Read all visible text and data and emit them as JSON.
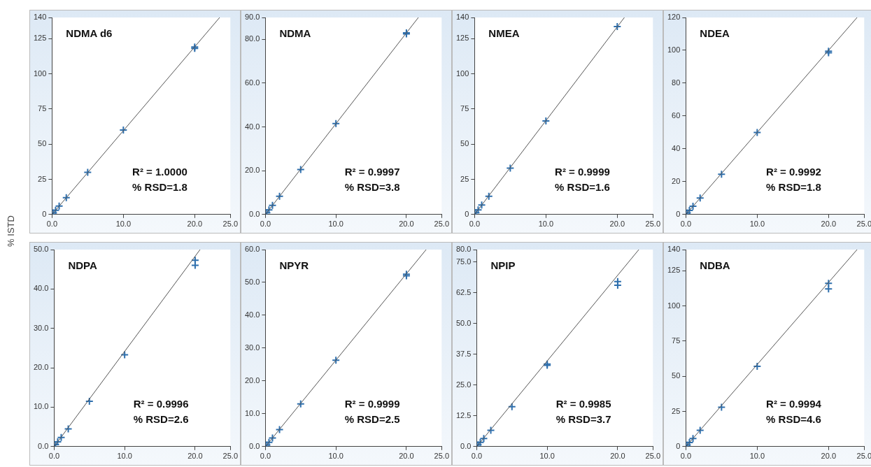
{
  "chart_data": [
    {
      "type": "scatter",
      "title": "NDMA d6",
      "ylabel": "% ISTD",
      "legend": false,
      "xlim": [
        0,
        25
      ],
      "xticks": [
        {
          "value": 0,
          "label": "0.0"
        },
        {
          "value": 10,
          "label": "10.0"
        },
        {
          "value": 20,
          "label": "20.0"
        },
        {
          "value": 25,
          "label": "25.0"
        }
      ],
      "ylim": [
        0,
        140
      ],
      "yticks": [
        0,
        25,
        50,
        75,
        100,
        125,
        140
      ],
      "annotations": [
        "R² = 1.0000",
        "% RSD=1.8"
      ],
      "series": [
        {
          "color": "#2e6fad",
          "marker": "cross",
          "x": [
            0.2,
            0.5,
            1,
            2,
            5,
            10,
            20,
            20
          ],
          "values": [
            1.2,
            3,
            6,
            12,
            30,
            60,
            119,
            118
          ]
        },
        {
          "type": "line",
          "marker": "none",
          "color": "#555555",
          "x": [
            0,
            23.5
          ],
          "values": [
            0,
            140
          ]
        }
      ]
    },
    {
      "type": "scatter",
      "title": "NDMA",
      "legend": false,
      "xlim": [
        0,
        25
      ],
      "xticks": [
        {
          "value": 0,
          "label": "0.0"
        },
        {
          "value": 10,
          "label": "10.0"
        },
        {
          "value": 20,
          "label": "20.0"
        },
        {
          "value": 25,
          "label": "25.0"
        }
      ],
      "ylim": [
        0,
        90
      ],
      "yticks": [
        {
          "value": 0,
          "label": "0.0"
        },
        {
          "value": 20,
          "label": "20.0"
        },
        {
          "value": 40,
          "label": "40.0"
        },
        {
          "value": 60,
          "label": "60.0"
        },
        {
          "value": 80,
          "label": "80.0"
        },
        {
          "value": 90,
          "label": "90.0"
        }
      ],
      "annotations": [
        "R² = 0.9997",
        "% RSD=3.8"
      ],
      "series": [
        {
          "color": "#2e6fad",
          "marker": "cross",
          "x": [
            0.2,
            0.5,
            1,
            2,
            5,
            10,
            20,
            20
          ],
          "values": [
            0.8,
            2.1,
            4.2,
            8.3,
            20.5,
            41.5,
            83,
            82.5
          ]
        },
        {
          "type": "line",
          "marker": "none",
          "color": "#555555",
          "x": [
            0,
            21.7
          ],
          "values": [
            0,
            90
          ]
        }
      ]
    },
    {
      "type": "scatter",
      "title": "NMEA",
      "legend": false,
      "xlim": [
        0,
        25
      ],
      "xticks": [
        {
          "value": 0,
          "label": "0.0"
        },
        {
          "value": 10,
          "label": "10.0"
        },
        {
          "value": 20,
          "label": "20.0"
        },
        {
          "value": 25,
          "label": "25.0"
        }
      ],
      "ylim": [
        0,
        140
      ],
      "yticks": [
        0,
        25,
        50,
        75,
        100,
        125,
        140
      ],
      "annotations": [
        "R² = 0.9999",
        "% RSD=1.6"
      ],
      "series": [
        {
          "color": "#2e6fad",
          "marker": "cross",
          "x": [
            0.2,
            0.5,
            1,
            2,
            5,
            10,
            20
          ],
          "values": [
            1.3,
            3.3,
            6.7,
            13,
            33,
            66.5,
            133.5
          ]
        },
        {
          "type": "line",
          "marker": "none",
          "color": "#555555",
          "x": [
            0,
            21
          ],
          "values": [
            0,
            140
          ]
        }
      ]
    },
    {
      "type": "scatter",
      "title": "NDEA",
      "legend": false,
      "xlim": [
        0,
        25
      ],
      "xticks": [
        {
          "value": 0,
          "label": "0.0"
        },
        {
          "value": 10,
          "label": "10.0"
        },
        {
          "value": 20,
          "label": "20.0"
        },
        {
          "value": 25,
          "label": "25.0"
        }
      ],
      "ylim": [
        0,
        120
      ],
      "yticks": [
        0,
        20,
        40,
        60,
        80,
        100,
        120
      ],
      "annotations": [
        "R² = 0.9992",
        "% RSD=1.8"
      ],
      "series": [
        {
          "color": "#2e6fad",
          "marker": "cross",
          "x": [
            0.2,
            0.5,
            1,
            2,
            5,
            10,
            20,
            20
          ],
          "values": [
            1,
            2.5,
            5,
            10,
            24.5,
            50,
            99.5,
            98.5
          ]
        },
        {
          "type": "line",
          "marker": "none",
          "color": "#555555",
          "x": [
            0,
            24
          ],
          "values": [
            0,
            120
          ]
        }
      ]
    },
    {
      "type": "scatter",
      "title": "NDPA",
      "legend": false,
      "xlim": [
        0,
        25
      ],
      "xticks": [
        {
          "value": 0,
          "label": "0.0"
        },
        {
          "value": 10,
          "label": "10.0"
        },
        {
          "value": 20,
          "label": "20.0"
        },
        {
          "value": 25,
          "label": "25.0"
        }
      ],
      "ylim": [
        0,
        50
      ],
      "yticks": [
        {
          "value": 0,
          "label": "0.0"
        },
        {
          "value": 10,
          "label": "10.0"
        },
        {
          "value": 20,
          "label": "20.0"
        },
        {
          "value": 30,
          "label": "30.0"
        },
        {
          "value": 40,
          "label": "40.0"
        },
        {
          "value": 50,
          "label": "50.0"
        }
      ],
      "annotations": [
        "R² = 0.9996",
        "% RSD=2.6"
      ],
      "series": [
        {
          "color": "#2e6fad",
          "marker": "cross",
          "x": [
            0.2,
            0.5,
            1,
            2,
            5,
            10,
            20,
            20
          ],
          "values": [
            0.5,
            1.2,
            2.3,
            4.5,
            11.5,
            23.3,
            47.3,
            46
          ]
        },
        {
          "type": "line",
          "marker": "none",
          "color": "#555555",
          "x": [
            0,
            20.7
          ],
          "values": [
            0,
            50
          ]
        }
      ]
    },
    {
      "type": "scatter",
      "title": "NPYR",
      "legend": false,
      "xlim": [
        0,
        25
      ],
      "xticks": [
        {
          "value": 0,
          "label": "0.0"
        },
        {
          "value": 10,
          "label": "10.0"
        },
        {
          "value": 20,
          "label": "20.0"
        },
        {
          "value": 25,
          "label": "25.0"
        }
      ],
      "ylim": [
        0,
        60
      ],
      "yticks": [
        {
          "value": 0,
          "label": "0.0"
        },
        {
          "value": 10,
          "label": "10.0"
        },
        {
          "value": 20,
          "label": "20.0"
        },
        {
          "value": 30,
          "label": "30.0"
        },
        {
          "value": 40,
          "label": "40.0"
        },
        {
          "value": 50,
          "label": "50.0"
        },
        {
          "value": 60,
          "label": "60.0"
        }
      ],
      "annotations": [
        "R² = 0.9999",
        "% RSD=2.5"
      ],
      "series": [
        {
          "color": "#2e6fad",
          "marker": "cross",
          "x": [
            0.2,
            0.5,
            1,
            2,
            5,
            10,
            20,
            20
          ],
          "values": [
            0.5,
            1.3,
            2.6,
            5.2,
            13,
            26.3,
            52.5,
            52
          ]
        },
        {
          "type": "line",
          "marker": "none",
          "color": "#555555",
          "x": [
            0,
            22.8
          ],
          "values": [
            0,
            60
          ]
        }
      ]
    },
    {
      "type": "scatter",
      "title": "NPIP",
      "legend": false,
      "xlim": [
        0,
        25
      ],
      "xticks": [
        {
          "value": 0,
          "label": "0.0"
        },
        {
          "value": 10,
          "label": "10.0"
        },
        {
          "value": 20,
          "label": "20.0"
        },
        {
          "value": 25,
          "label": "25.0"
        }
      ],
      "ylim": [
        0,
        80
      ],
      "yticks": [
        {
          "value": 0,
          "label": "0.0"
        },
        12.5,
        {
          "value": 25,
          "label": "25.0"
        },
        37.5,
        {
          "value": 50,
          "label": "50.0"
        },
        62.5,
        {
          "value": 75,
          "label": "75.0"
        },
        {
          "value": 80,
          "label": "80.0"
        }
      ],
      "annotations": [
        "R² = 0.9985",
        "% RSD=3.7"
      ],
      "series": [
        {
          "color": "#2e6fad",
          "marker": "cross",
          "x": [
            0.2,
            0.5,
            1,
            2,
            5,
            10,
            10,
            20,
            20
          ],
          "values": [
            0.7,
            1.7,
            3.3,
            6.6,
            16.2,
            33,
            33.5,
            67,
            65.5
          ]
        },
        {
          "type": "line",
          "marker": "none",
          "color": "#555555",
          "x": [
            0,
            23
          ],
          "values": [
            0,
            80
          ]
        }
      ]
    },
    {
      "type": "scatter",
      "title": "NDBA",
      "legend": false,
      "xlim": [
        0,
        25
      ],
      "xticks": [
        {
          "value": 0,
          "label": "0.0"
        },
        {
          "value": 10,
          "label": "10.0"
        },
        {
          "value": 20,
          "label": "20.0"
        },
        {
          "value": 25,
          "label": "25.0"
        }
      ],
      "ylim": [
        0,
        140
      ],
      "yticks": [
        0,
        25,
        50,
        75,
        100,
        125,
        140
      ],
      "annotations": [
        "R² = 0.9994",
        "% RSD=4.6"
      ],
      "series": [
        {
          "color": "#2e6fad",
          "marker": "cross",
          "x": [
            0.2,
            0.5,
            1,
            2,
            5,
            10,
            20,
            20
          ],
          "values": [
            1.2,
            2.9,
            5.8,
            11.6,
            28,
            57,
            116,
            112
          ]
        },
        {
          "type": "line",
          "marker": "none",
          "color": "#555555",
          "x": [
            0,
            24
          ],
          "values": [
            0,
            140
          ]
        }
      ]
    }
  ]
}
